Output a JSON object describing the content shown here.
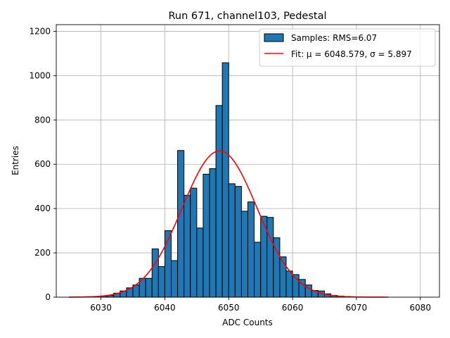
{
  "chart_data": {
    "type": "bar",
    "title": "Run 671, channel103, Pedestal",
    "xlabel": "ADC Counts",
    "ylabel": "Entries",
    "xlim": [
      6023,
      6083
    ],
    "ylim": [
      0,
      1230
    ],
    "xticks": [
      6030,
      6040,
      6050,
      6060,
      6070,
      6080
    ],
    "yticks": [
      0,
      200,
      400,
      600,
      800,
      1000,
      1200
    ],
    "grid": true,
    "legend_position": "top-right",
    "histogram": {
      "name": "Samples: RMS=6.07",
      "color": "#1f77b4",
      "bin_width": 1,
      "bins": [
        {
          "x": 6030,
          "value": 5
        },
        {
          "x": 6031,
          "value": 8
        },
        {
          "x": 6032,
          "value": 18
        },
        {
          "x": 6033,
          "value": 28
        },
        {
          "x": 6034,
          "value": 42
        },
        {
          "x": 6035,
          "value": 55
        },
        {
          "x": 6036,
          "value": 85
        },
        {
          "x": 6037,
          "value": 85
        },
        {
          "x": 6038,
          "value": 218
        },
        {
          "x": 6039,
          "value": 138
        },
        {
          "x": 6040,
          "value": 300
        },
        {
          "x": 6041,
          "value": 165
        },
        {
          "x": 6042,
          "value": 662
        },
        {
          "x": 6043,
          "value": 460
        },
        {
          "x": 6044,
          "value": 492
        },
        {
          "x": 6045,
          "value": 312
        },
        {
          "x": 6046,
          "value": 555
        },
        {
          "x": 6047,
          "value": 580
        },
        {
          "x": 6048,
          "value": 865
        },
        {
          "x": 6049,
          "value": 1058
        },
        {
          "x": 6050,
          "value": 512
        },
        {
          "x": 6051,
          "value": 500
        },
        {
          "x": 6052,
          "value": 388
        },
        {
          "x": 6053,
          "value": 430
        },
        {
          "x": 6054,
          "value": 248
        },
        {
          "x": 6055,
          "value": 365
        },
        {
          "x": 6056,
          "value": 360
        },
        {
          "x": 6057,
          "value": 268
        },
        {
          "x": 6058,
          "value": 182
        },
        {
          "x": 6059,
          "value": 118
        },
        {
          "x": 6060,
          "value": 102
        },
        {
          "x": 6061,
          "value": 80
        },
        {
          "x": 6062,
          "value": 55
        },
        {
          "x": 6063,
          "value": 30
        },
        {
          "x": 6064,
          "value": 28
        },
        {
          "x": 6065,
          "value": 15
        },
        {
          "x": 6066,
          "value": 8
        },
        {
          "x": 6067,
          "value": 5
        },
        {
          "x": 6068,
          "value": 3
        }
      ]
    },
    "fit": {
      "name": "Fit: μ = 6048.579, σ = 5.897",
      "color": "#ff0000",
      "mu": 6048.579,
      "sigma": 5.897,
      "amplitude": 660,
      "x_range": [
        6025,
        6075
      ]
    }
  }
}
